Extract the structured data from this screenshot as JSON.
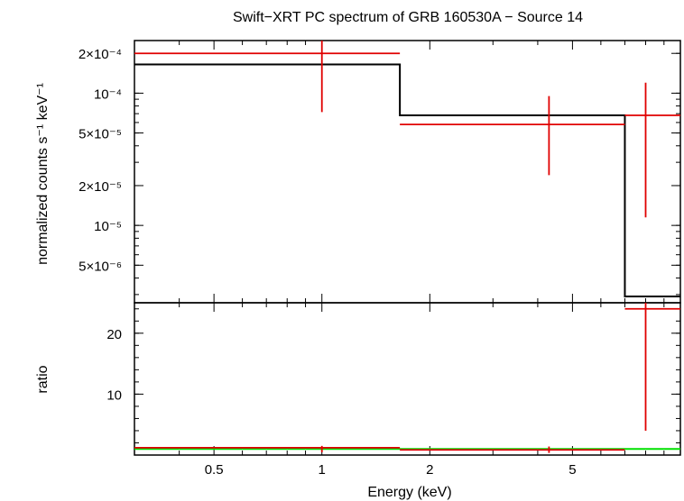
{
  "chart_data": {
    "type": "line",
    "title": "Swift−XRT PC spectrum of GRB 160530A − Source 14",
    "xlabel": "Energy (keV)",
    "x_scale": "log",
    "xlim": [
      0.3,
      10
    ],
    "x_ticks": [
      {
        "value": 0.5,
        "label": "0.5"
      },
      {
        "value": 1,
        "label": "1"
      },
      {
        "value": 2,
        "label": "2"
      },
      {
        "value": 5,
        "label": "5"
      }
    ],
    "colors": {
      "model": "#000000",
      "data": "#e00000",
      "unity": "#00e000",
      "axes": "#000000"
    },
    "panels": [
      {
        "id": "spectrum",
        "ylabel": "normalized counts s⁻¹ keV⁻¹",
        "y_scale": "log",
        "ylim": [
          2.6e-06,
          0.00025
        ],
        "y_ticks": [
          {
            "value": 0.0002,
            "label": "2×10⁻⁴"
          },
          {
            "value": 0.0001,
            "label": "10⁻⁴"
          },
          {
            "value": 5e-05,
            "label": "5×10⁻⁵"
          },
          {
            "value": 2e-05,
            "label": "2×10⁻⁵"
          },
          {
            "value": 1e-05,
            "label": "10⁻⁵"
          },
          {
            "value": 5e-06,
            "label": "5×10⁻⁶"
          }
        ],
        "data": [
          {
            "x": 1.0,
            "x_lo": 0.3,
            "x_hi": 1.65,
            "y": 0.0002,
            "y_lo": 7.2e-05,
            "y_hi": 0.00025
          },
          {
            "x": 4.3,
            "x_lo": 1.65,
            "x_hi": 7.0,
            "y": 5.8e-05,
            "y_lo": 2.4e-05,
            "y_hi": 9.5e-05
          },
          {
            "x": 8.0,
            "x_lo": 7.0,
            "x_hi": 10.0,
            "y": 6.8e-05,
            "y_lo": 1.15e-05,
            "y_hi": 0.00012
          }
        ],
        "model_steps": [
          {
            "x_lo": 0.3,
            "x_hi": 1.65,
            "y": 0.000165
          },
          {
            "x_lo": 1.65,
            "x_hi": 7.0,
            "y": 6.8e-05
          },
          {
            "x_lo": 7.0,
            "x_hi": 10.0,
            "y": 2.9e-06
          }
        ]
      },
      {
        "id": "ratio",
        "ylabel": "ratio",
        "y_scale": "linear",
        "ylim": [
          0,
          25
        ],
        "y_ticks": [
          {
            "value": 10,
            "label": "10"
          },
          {
            "value": 20,
            "label": "20"
          }
        ],
        "data": [
          {
            "x": 1.0,
            "x_lo": 0.3,
            "x_hi": 1.65,
            "y": 1.2,
            "y_lo": 0.45,
            "y_hi": 1.5
          },
          {
            "x": 4.3,
            "x_lo": 1.65,
            "x_hi": 7.0,
            "y": 0.85,
            "y_lo": 0.35,
            "y_hi": 1.4
          },
          {
            "x": 8.0,
            "x_lo": 7.0,
            "x_hi": 10.0,
            "y": 24.0,
            "y_lo": 4.0,
            "y_hi": 25.0
          }
        ],
        "unity_line": 1
      }
    ]
  }
}
